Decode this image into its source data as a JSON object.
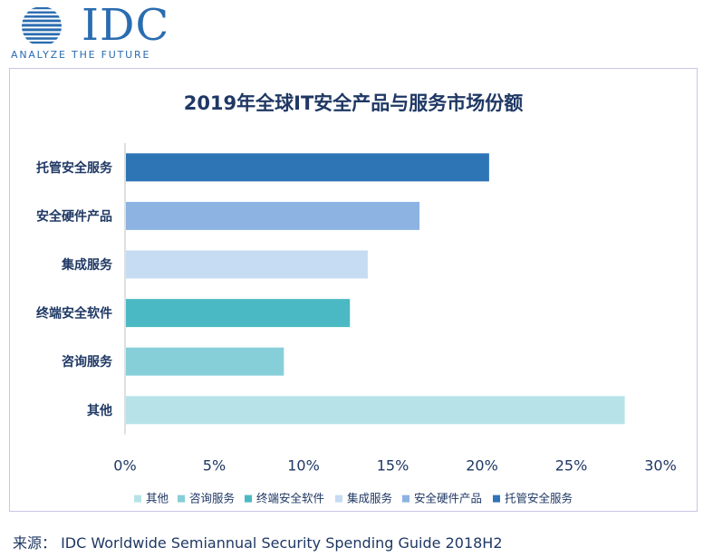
{
  "brand": {
    "logo_text": "IDC",
    "tagline": "ANALYZE THE FUTURE",
    "color": "#2a6cb0"
  },
  "chart_data": {
    "type": "bar",
    "orientation": "horizontal",
    "title": "2019年全球IT安全产品与服务市场份额",
    "categories": [
      "托管安全服务",
      "安全硬件产品",
      "集成服务",
      "终端安全软件",
      "咨询服务",
      "其他"
    ],
    "values": [
      20.4,
      16.5,
      13.6,
      12.6,
      8.9,
      28.0
    ],
    "colors": [
      "#2e75b6",
      "#8db3e2",
      "#c5dcf2",
      "#4bb9c4",
      "#86cfd8",
      "#b7e3e8"
    ],
    "xlim": [
      0,
      30
    ],
    "xticks": [
      "0%",
      "5%",
      "10%",
      "15%",
      "20%",
      "25%",
      "30%"
    ],
    "xlabel": "",
    "ylabel": "",
    "grid": false,
    "legend_position": "bottom",
    "legend": [
      "其他",
      "咨询服务",
      "终端安全软件",
      "集成服务",
      "安全硬件产品",
      "托管安全服务"
    ]
  },
  "source_text": "来源：  IDC Worldwide Semiannual Security Spending Guide 2018H2"
}
